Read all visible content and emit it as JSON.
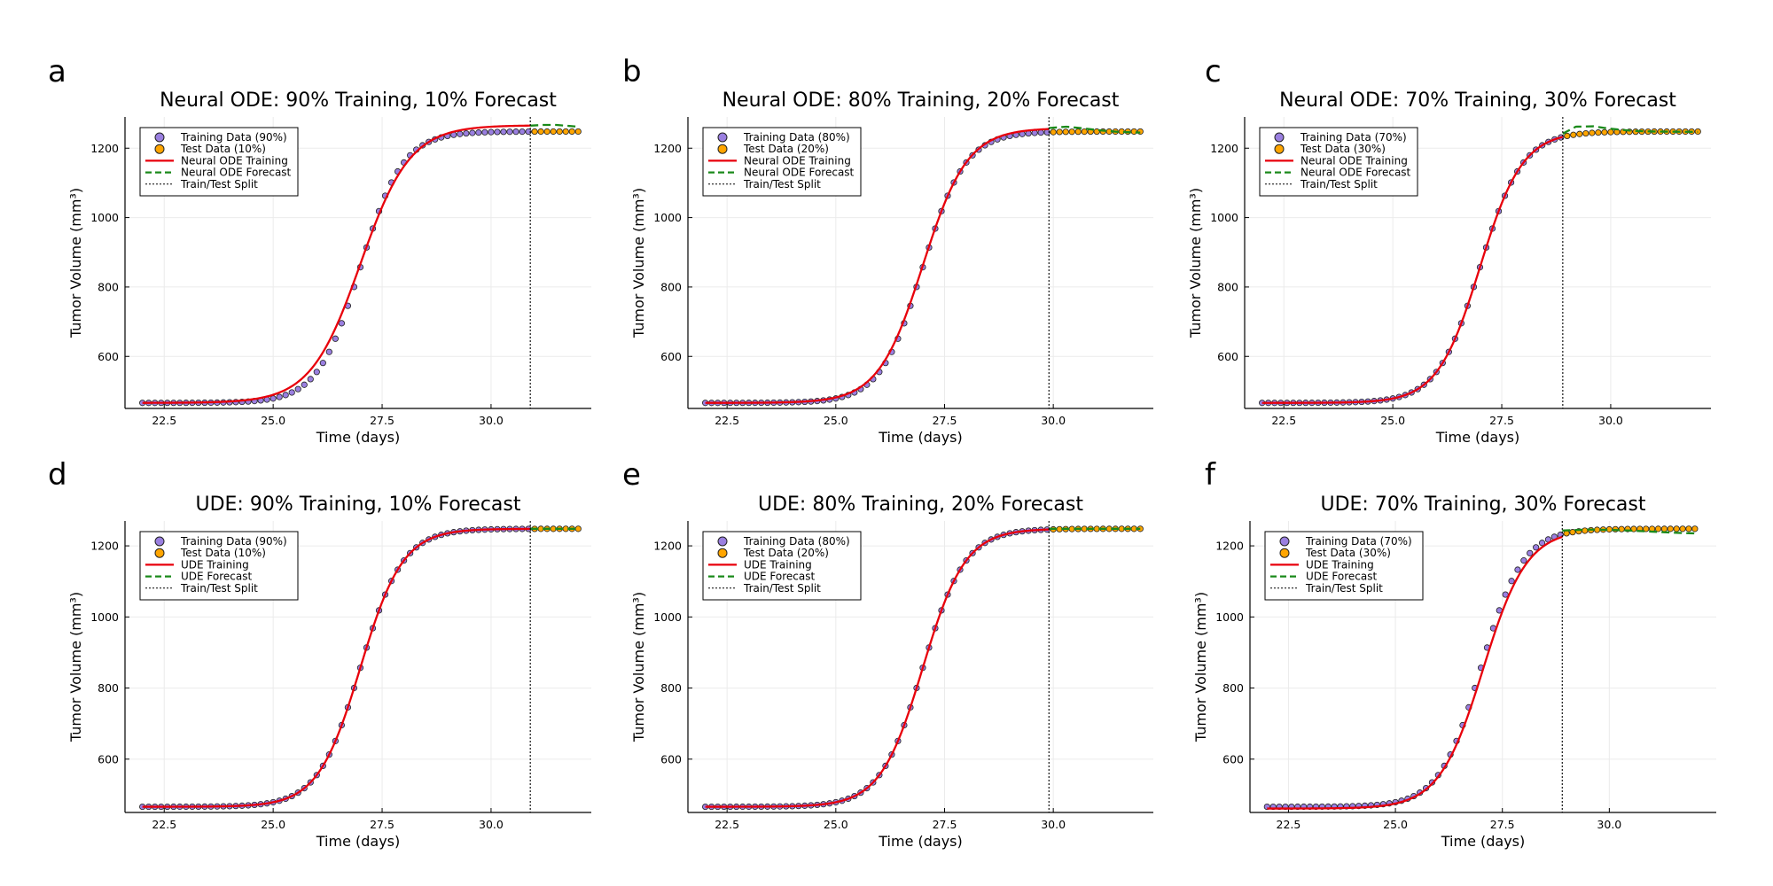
{
  "figure": {
    "xlabel": "Time (days)",
    "ylabel": "Tumor Volume (mm³)",
    "colors": {
      "training_points": "#9a7fe0",
      "test_points": "#ffa500",
      "fit_line": "#e8000b",
      "forecast_line": "#1a8a1a",
      "split_line": "#000000",
      "grid": "#ebebeb"
    }
  },
  "chart_data": [
    {
      "panel": "a",
      "type": "scatter+line",
      "model": "Neural ODE",
      "title": "Neural ODE: 90% Training, 10% Forecast",
      "xlabel": "Time (days)",
      "ylabel": "Tumor Volume (mm³)",
      "xlim": [
        21.6,
        32.3
      ],
      "ylim": [
        450,
        1290
      ],
      "xticks": [
        22.5,
        25.0,
        27.5,
        30.0
      ],
      "yticks": [
        600,
        800,
        1000,
        1200
      ],
      "split": 30.9,
      "t_start": 22.0,
      "t_end": 32.0,
      "n_points": 71,
      "data_curve": {
        "baseline": 466,
        "plateau": 1248,
        "midpoint": 27.0,
        "rate": 2.05
      },
      "fit_curve": {
        "baseline": 466,
        "plateau": 1266,
        "midpoint": 27.0,
        "rate": 1.75
      },
      "forecast": [
        [
          30.9,
          1265
        ],
        [
          31.2,
          1267
        ],
        [
          31.5,
          1267
        ],
        [
          31.8,
          1264
        ],
        [
          32.0,
          1262
        ]
      ],
      "legend": [
        "Training Data (90%)",
        "Test Data (10%)",
        "Neural ODE Training",
        "Neural ODE Forecast",
        "Train/Test Split"
      ]
    },
    {
      "panel": "b",
      "type": "scatter+line",
      "model": "Neural ODE",
      "title": "Neural ODE: 80% Training, 20% Forecast",
      "xlabel": "Time (days)",
      "ylabel": "Tumor Volume (mm³)",
      "xlim": [
        21.6,
        32.3
      ],
      "ylim": [
        450,
        1290
      ],
      "xticks": [
        22.5,
        25.0,
        27.5,
        30.0
      ],
      "yticks": [
        600,
        800,
        1000,
        1200
      ],
      "split": 29.9,
      "t_start": 22.0,
      "t_end": 32.0,
      "n_points": 71,
      "data_curve": {
        "baseline": 466,
        "plateau": 1248,
        "midpoint": 27.0,
        "rate": 2.05
      },
      "fit_curve": {
        "baseline": 466,
        "plateau": 1258,
        "midpoint": 27.0,
        "rate": 1.95
      },
      "forecast": [
        [
          29.9,
          1258
        ],
        [
          30.3,
          1262
        ],
        [
          30.7,
          1257
        ],
        [
          31.1,
          1251
        ],
        [
          31.5,
          1247
        ],
        [
          32.0,
          1245
        ]
      ],
      "legend": [
        "Training Data (80%)",
        "Test Data (20%)",
        "Neural ODE Training",
        "Neural ODE Forecast",
        "Train/Test Split"
      ]
    },
    {
      "panel": "c",
      "type": "scatter+line",
      "model": "Neural ODE",
      "title": "Neural ODE: 70% Training, 30% Forecast",
      "xlabel": "Time (days)",
      "ylabel": "Tumor Volume (mm³)",
      "xlim": [
        21.6,
        32.3
      ],
      "ylim": [
        450,
        1290
      ],
      "xticks": [
        22.5,
        25.0,
        27.5,
        30.0
      ],
      "yticks": [
        600,
        800,
        1000,
        1200
      ],
      "split": 28.9,
      "t_start": 22.0,
      "t_end": 32.0,
      "n_points": 71,
      "data_curve": {
        "baseline": 466,
        "plateau": 1248,
        "midpoint": 27.0,
        "rate": 2.05
      },
      "fit_curve": {
        "baseline": 466,
        "plateau": 1248,
        "midpoint": 27.0,
        "rate": 2.05
      },
      "forecast": [
        [
          28.9,
          1242
        ],
        [
          29.2,
          1262
        ],
        [
          29.6,
          1263
        ],
        [
          30.0,
          1256
        ],
        [
          30.5,
          1250
        ],
        [
          31.0,
          1248
        ],
        [
          32.0,
          1247
        ]
      ],
      "legend": [
        "Training Data (70%)",
        "Test Data (30%)",
        "Neural ODE Training",
        "Neural ODE Forecast",
        "Train/Test Split"
      ]
    },
    {
      "panel": "d",
      "type": "scatter+line",
      "model": "UDE",
      "title": "UDE: 90% Training, 10% Forecast",
      "xlabel": "Time (days)",
      "ylabel": "Tumor Volume (mm³)",
      "xlim": [
        21.6,
        32.3
      ],
      "ylim": [
        450,
        1270
      ],
      "xticks": [
        22.5,
        25.0,
        27.5,
        30.0
      ],
      "yticks": [
        600,
        800,
        1000,
        1200
      ],
      "split": 30.9,
      "t_start": 22.0,
      "t_end": 32.0,
      "n_points": 71,
      "data_curve": {
        "baseline": 466,
        "plateau": 1248,
        "midpoint": 27.0,
        "rate": 2.05
      },
      "fit_curve": {
        "baseline": 466,
        "plateau": 1248,
        "midpoint": 27.0,
        "rate": 2.05
      },
      "forecast": [
        [
          30.9,
          1248
        ],
        [
          31.5,
          1248
        ],
        [
          32.0,
          1248
        ]
      ],
      "legend": [
        "Training Data (90%)",
        "Test Data (10%)",
        "UDE Training",
        "UDE Forecast",
        "Train/Test Split"
      ]
    },
    {
      "panel": "e",
      "type": "scatter+line",
      "model": "UDE",
      "title": "UDE: 80% Training, 20% Forecast",
      "xlabel": "Time (days)",
      "ylabel": "Tumor Volume (mm³)",
      "xlim": [
        21.6,
        32.3
      ],
      "ylim": [
        450,
        1270
      ],
      "xticks": [
        22.5,
        25.0,
        27.5,
        30.0
      ],
      "yticks": [
        600,
        800,
        1000,
        1200
      ],
      "split": 29.9,
      "t_start": 22.0,
      "t_end": 32.0,
      "n_points": 71,
      "data_curve": {
        "baseline": 466,
        "plateau": 1248,
        "midpoint": 27.0,
        "rate": 2.05
      },
      "fit_curve": {
        "baseline": 466,
        "plateau": 1248,
        "midpoint": 27.0,
        "rate": 2.05
      },
      "forecast": [
        [
          29.9,
          1248
        ],
        [
          30.5,
          1248
        ],
        [
          31.0,
          1248
        ],
        [
          32.0,
          1248
        ]
      ],
      "legend": [
        "Training Data (80%)",
        "Test Data (20%)",
        "UDE Training",
        "UDE Forecast",
        "Train/Test Split"
      ]
    },
    {
      "panel": "f",
      "type": "scatter+line",
      "model": "UDE",
      "title": "UDE: 70% Training, 30% Forecast",
      "xlabel": "Time (days)",
      "ylabel": "Tumor Volume (mm³)",
      "xlim": [
        21.6,
        32.5
      ],
      "ylim": [
        450,
        1270
      ],
      "xticks": [
        22.5,
        25.0,
        27.5,
        30.0
      ],
      "yticks": [
        600,
        800,
        1000,
        1200
      ],
      "split": 28.9,
      "t_start": 22.0,
      "t_end": 32.0,
      "n_points": 71,
      "data_curve": {
        "baseline": 466,
        "plateau": 1248,
        "midpoint": 27.0,
        "rate": 2.05
      },
      "fit_curve": {
        "baseline": 461,
        "plateau": 1246,
        "midpoint": 27.05,
        "rate": 1.95
      },
      "forecast": [
        [
          28.9,
          1243
        ],
        [
          29.5,
          1246
        ],
        [
          30.0,
          1245
        ],
        [
          30.5,
          1243
        ],
        [
          31.0,
          1240
        ],
        [
          31.5,
          1237
        ],
        [
          32.0,
          1235
        ]
      ],
      "legend": [
        "Training Data (70%)",
        "Test Data (30%)",
        "UDE Training",
        "UDE Forecast",
        "Train/Test Split"
      ]
    }
  ]
}
